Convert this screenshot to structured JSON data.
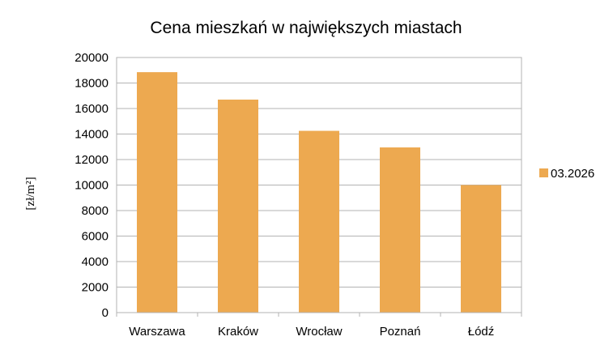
{
  "chart_data": {
    "type": "bar",
    "title": "Cena mieszkań w największych miastach",
    "xlabel": "",
    "ylabel": "[zł/m²]",
    "categories": [
      "Warszawa",
      "Kraków",
      "Wrocław",
      "Poznań",
      "Łódź"
    ],
    "series": [
      {
        "name": "03.2026",
        "values": [
          18850,
          16700,
          14250,
          12950,
          10000
        ],
        "color": "#EDA950"
      }
    ],
    "ylim": [
      0,
      20000
    ],
    "yticks": [
      "0",
      "2000",
      "4000",
      "6000",
      "8000",
      "10000",
      "12000",
      "14000",
      "16000",
      "18000",
      "20000"
    ],
    "grid": true,
    "legend_position": "right"
  }
}
